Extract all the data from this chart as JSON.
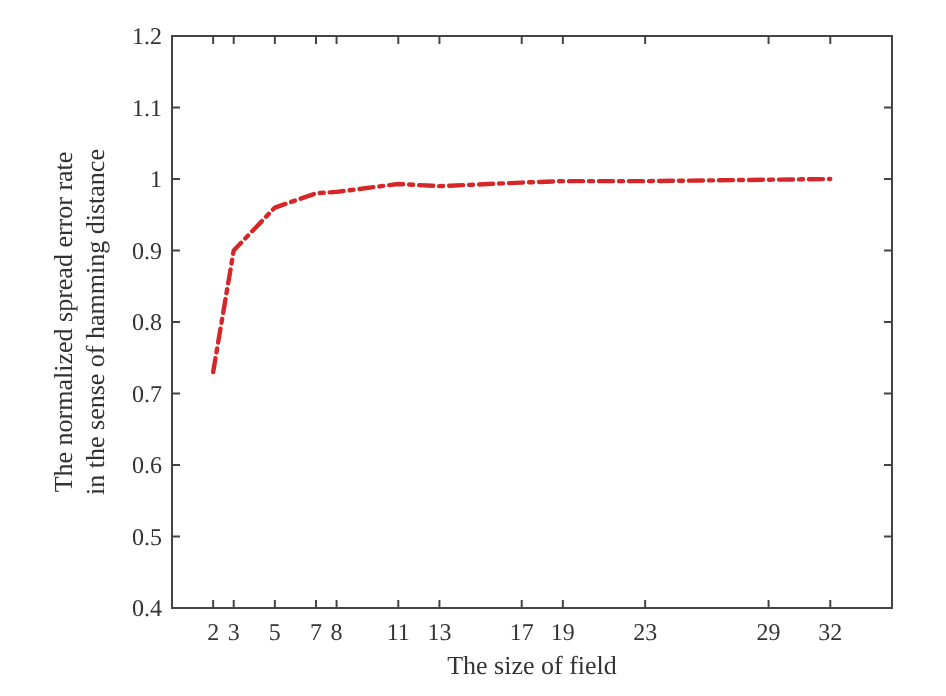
{
  "chart_data": {
    "type": "line",
    "xlabel": "The size of field",
    "ylabel": "The normalized spread error rate\nin the sense of hamming distance",
    "x": [
      2,
      3,
      5,
      7,
      8,
      11,
      13,
      17,
      19,
      23,
      29,
      32
    ],
    "series": [
      {
        "color": "#d62728",
        "values": [
          0.73,
          0.9,
          0.96,
          0.98,
          0.982,
          0.993,
          0.99,
          0.995,
          0.997,
          0.997,
          0.999,
          1.0
        ]
      }
    ],
    "xlim": [
      0,
      35
    ],
    "xticks": [
      2,
      3,
      5,
      7,
      8,
      11,
      13,
      17,
      19,
      23,
      29,
      32
    ],
    "ylim": [
      0.4,
      1.2
    ],
    "yticks": [
      0.4,
      0.5,
      0.6,
      0.7,
      0.8,
      0.9,
      1,
      1.1,
      1.2
    ],
    "grid": false,
    "marker": "none",
    "line_style": "dashed"
  }
}
